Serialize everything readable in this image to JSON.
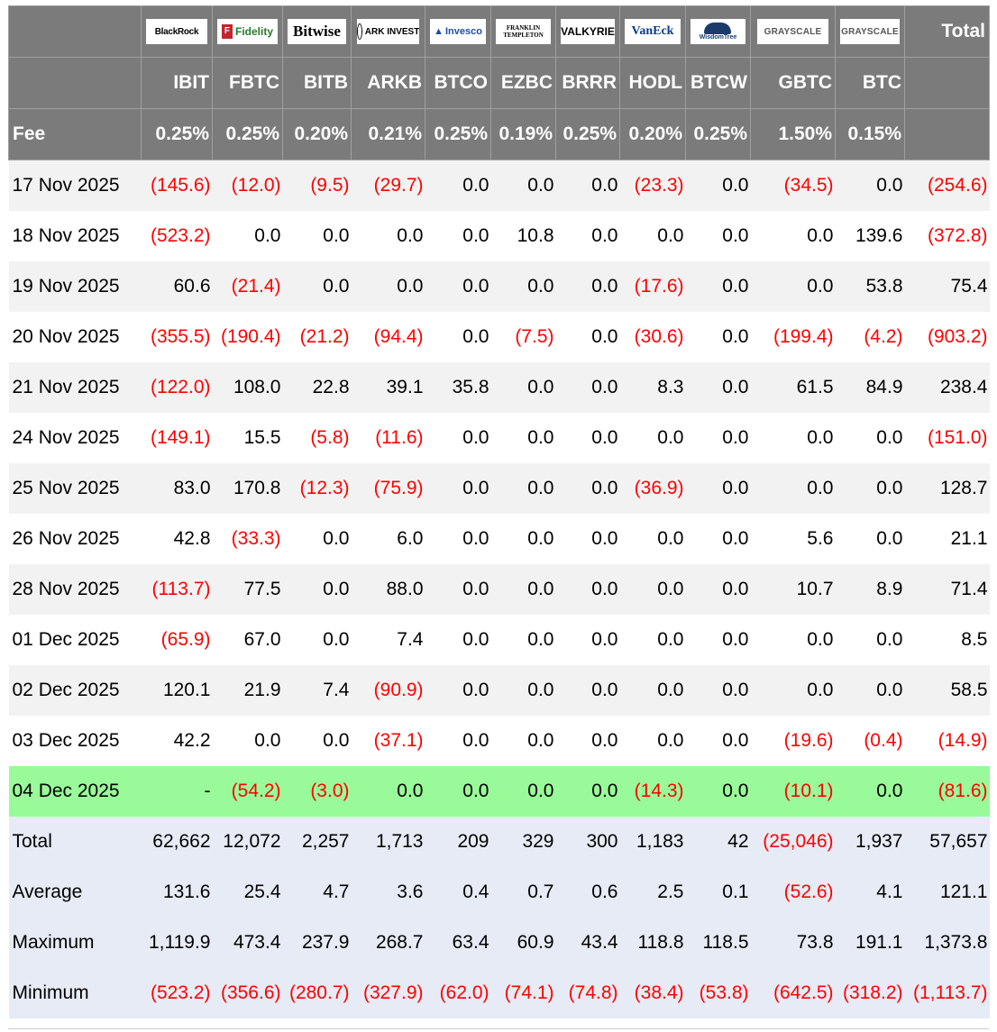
{
  "columns": [
    {
      "brand": "BlackRock",
      "ticker": "IBIT",
      "fee": "0.25%"
    },
    {
      "brand": "Fidelity",
      "ticker": "FBTC",
      "fee": "0.25%"
    },
    {
      "brand": "Bitwise",
      "ticker": "BITB",
      "fee": "0.20%"
    },
    {
      "brand": "ARK INVEST",
      "ticker": "ARKB",
      "fee": "0.21%"
    },
    {
      "brand": "Invesco",
      "ticker": "BTCO",
      "fee": "0.25%"
    },
    {
      "brand": "FRANKLIN TEMPLETON",
      "ticker": "EZBC",
      "fee": "0.19%"
    },
    {
      "brand": "VALKYRIE",
      "ticker": "BRRR",
      "fee": "0.25%"
    },
    {
      "brand": "VanEck",
      "ticker": "HODL",
      "fee": "0.20%"
    },
    {
      "brand": "WisdomTree",
      "ticker": "BTCW",
      "fee": "0.25%"
    },
    {
      "brand": "GRAYSCALE",
      "ticker": "GBTC",
      "fee": "1.50%"
    },
    {
      "brand": "GRAYSCALE",
      "ticker": "BTC",
      "fee": "0.15%"
    }
  ],
  "header": {
    "total_label": "Total",
    "fee_label": "Fee"
  },
  "rows": [
    {
      "date": "17 Nov 2025",
      "values": [
        "(145.6)",
        "(12.0)",
        "(9.5)",
        "(29.7)",
        "0.0",
        "0.0",
        "0.0",
        "(23.3)",
        "0.0",
        "(34.5)",
        "0.0",
        "(254.6)"
      ]
    },
    {
      "date": "18 Nov 2025",
      "values": [
        "(523.2)",
        "0.0",
        "0.0",
        "0.0",
        "0.0",
        "10.8",
        "0.0",
        "0.0",
        "0.0",
        "0.0",
        "139.6",
        "(372.8)"
      ]
    },
    {
      "date": "19 Nov 2025",
      "values": [
        "60.6",
        "(21.4)",
        "0.0",
        "0.0",
        "0.0",
        "0.0",
        "0.0",
        "(17.6)",
        "0.0",
        "0.0",
        "53.8",
        "75.4"
      ]
    },
    {
      "date": "20 Nov 2025",
      "values": [
        "(355.5)",
        "(190.4)",
        "(21.2)",
        "(94.4)",
        "0.0",
        "(7.5)",
        "0.0",
        "(30.6)",
        "0.0",
        "(199.4)",
        "(4.2)",
        "(903.2)"
      ]
    },
    {
      "date": "21 Nov 2025",
      "values": [
        "(122.0)",
        "108.0",
        "22.8",
        "39.1",
        "35.8",
        "0.0",
        "0.0",
        "8.3",
        "0.0",
        "61.5",
        "84.9",
        "238.4"
      ]
    },
    {
      "date": "24 Nov 2025",
      "values": [
        "(149.1)",
        "15.5",
        "(5.8)",
        "(11.6)",
        "0.0",
        "0.0",
        "0.0",
        "0.0",
        "0.0",
        "0.0",
        "0.0",
        "(151.0)"
      ]
    },
    {
      "date": "25 Nov 2025",
      "values": [
        "83.0",
        "170.8",
        "(12.3)",
        "(75.9)",
        "0.0",
        "0.0",
        "0.0",
        "(36.9)",
        "0.0",
        "0.0",
        "0.0",
        "128.7"
      ]
    },
    {
      "date": "26 Nov 2025",
      "values": [
        "42.8",
        "(33.3)",
        "0.0",
        "6.0",
        "0.0",
        "0.0",
        "0.0",
        "0.0",
        "0.0",
        "5.6",
        "0.0",
        "21.1"
      ]
    },
    {
      "date": "28 Nov 2025",
      "values": [
        "(113.7)",
        "77.5",
        "0.0",
        "88.0",
        "0.0",
        "0.0",
        "0.0",
        "0.0",
        "0.0",
        "10.7",
        "8.9",
        "71.4"
      ]
    },
    {
      "date": "01 Dec 2025",
      "values": [
        "(65.9)",
        "67.0",
        "0.0",
        "7.4",
        "0.0",
        "0.0",
        "0.0",
        "0.0",
        "0.0",
        "0.0",
        "0.0",
        "8.5"
      ]
    },
    {
      "date": "02 Dec 2025",
      "values": [
        "120.1",
        "21.9",
        "7.4",
        "(90.9)",
        "0.0",
        "0.0",
        "0.0",
        "0.0",
        "0.0",
        "0.0",
        "0.0",
        "58.5"
      ]
    },
    {
      "date": "03 Dec 2025",
      "values": [
        "42.2",
        "0.0",
        "0.0",
        "(37.1)",
        "0.0",
        "0.0",
        "0.0",
        "0.0",
        "0.0",
        "(19.6)",
        "(0.4)",
        "(14.9)"
      ]
    },
    {
      "date": "04 Dec 2025",
      "values": [
        "-",
        "(54.2)",
        "(3.0)",
        "0.0",
        "0.0",
        "0.0",
        "0.0",
        "(14.3)",
        "0.0",
        "(10.1)",
        "0.0",
        "(81.6)"
      ]
    }
  ],
  "summary": [
    {
      "label": "Total",
      "values": [
        "62,662",
        "12,072",
        "2,257",
        "1,713",
        "209",
        "329",
        "300",
        "1,183",
        "42",
        "(25,046)",
        "1,937",
        "57,657"
      ]
    },
    {
      "label": "Average",
      "values": [
        "131.6",
        "25.4",
        "4.7",
        "3.6",
        "0.4",
        "0.7",
        "0.6",
        "2.5",
        "0.1",
        "(52.6)",
        "4.1",
        "121.1"
      ]
    },
    {
      "label": "Maximum",
      "values": [
        "1,119.9",
        "473.4",
        "237.9",
        "268.7",
        "63.4",
        "60.9",
        "43.4",
        "118.8",
        "118.5",
        "73.8",
        "191.1",
        "1,373.8"
      ]
    },
    {
      "label": "Minimum",
      "values": [
        "(523.2)",
        "(356.6)",
        "(280.7)",
        "(327.9)",
        "(62.0)",
        "(74.1)",
        "(74.8)",
        "(38.4)",
        "(53.8)",
        "(642.5)",
        "(318.2)",
        "(1,113.7)"
      ]
    }
  ],
  "colors": {
    "header_bg": "#7b7b7b",
    "negative": "#ff0000",
    "highlight_row": "#99fa99",
    "summary_bg": "#e6ebf5",
    "stripe": "#f2f2f2"
  }
}
